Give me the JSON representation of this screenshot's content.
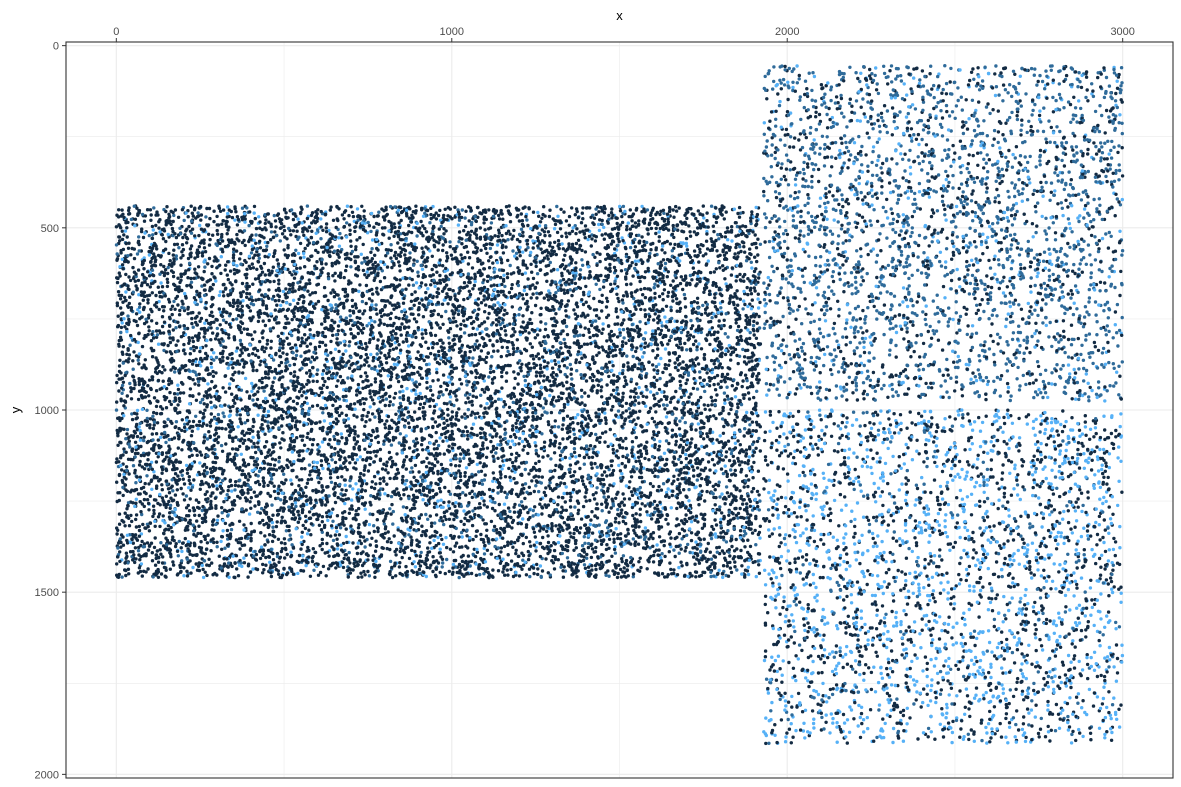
{
  "chart_data": {
    "type": "scatter",
    "title": "",
    "xlabel": "x",
    "ylabel": "y",
    "x_axis_position": "top",
    "y_reversed": true,
    "xlim": [
      -150,
      3150
    ],
    "ylim": [
      -10,
      2010
    ],
    "x_ticks": [
      0,
      1000,
      2000,
      3000
    ],
    "y_ticks": [
      0,
      500,
      1000,
      1500,
      2000
    ],
    "x_tick_labels": [
      "0",
      "1000",
      "2000",
      "3000"
    ],
    "y_tick_labels": [
      "0",
      "500",
      "1000",
      "1500",
      "2000"
    ],
    "grid": true,
    "legend": "none",
    "colors": {
      "dark": "#132b43",
      "mid": "#2f6b9a",
      "light": "#56b1f7",
      "grid": "#ebebeb",
      "panel_border": "#333333"
    },
    "regions": [
      {
        "name": "left block",
        "x_range": [
          0,
          1920
        ],
        "y_range": [
          440,
          1460
        ],
        "approx_points": 12000,
        "color_mix": {
          "dark": 0.8,
          "mid": 0.12,
          "light": 0.08
        }
      },
      {
        "name": "upper right block",
        "x_range": [
          1930,
          3000
        ],
        "y_range": [
          55,
          975
        ],
        "approx_points": 3200,
        "color_mix": {
          "dark": 0.3,
          "mid": 0.6,
          "light": 0.1
        }
      },
      {
        "name": "lower right block",
        "x_range": [
          1930,
          3000
        ],
        "y_range": [
          1000,
          1915
        ],
        "approx_points": 3000,
        "color_mix": {
          "dark": 0.45,
          "mid": 0.1,
          "light": 0.45
        }
      }
    ]
  }
}
